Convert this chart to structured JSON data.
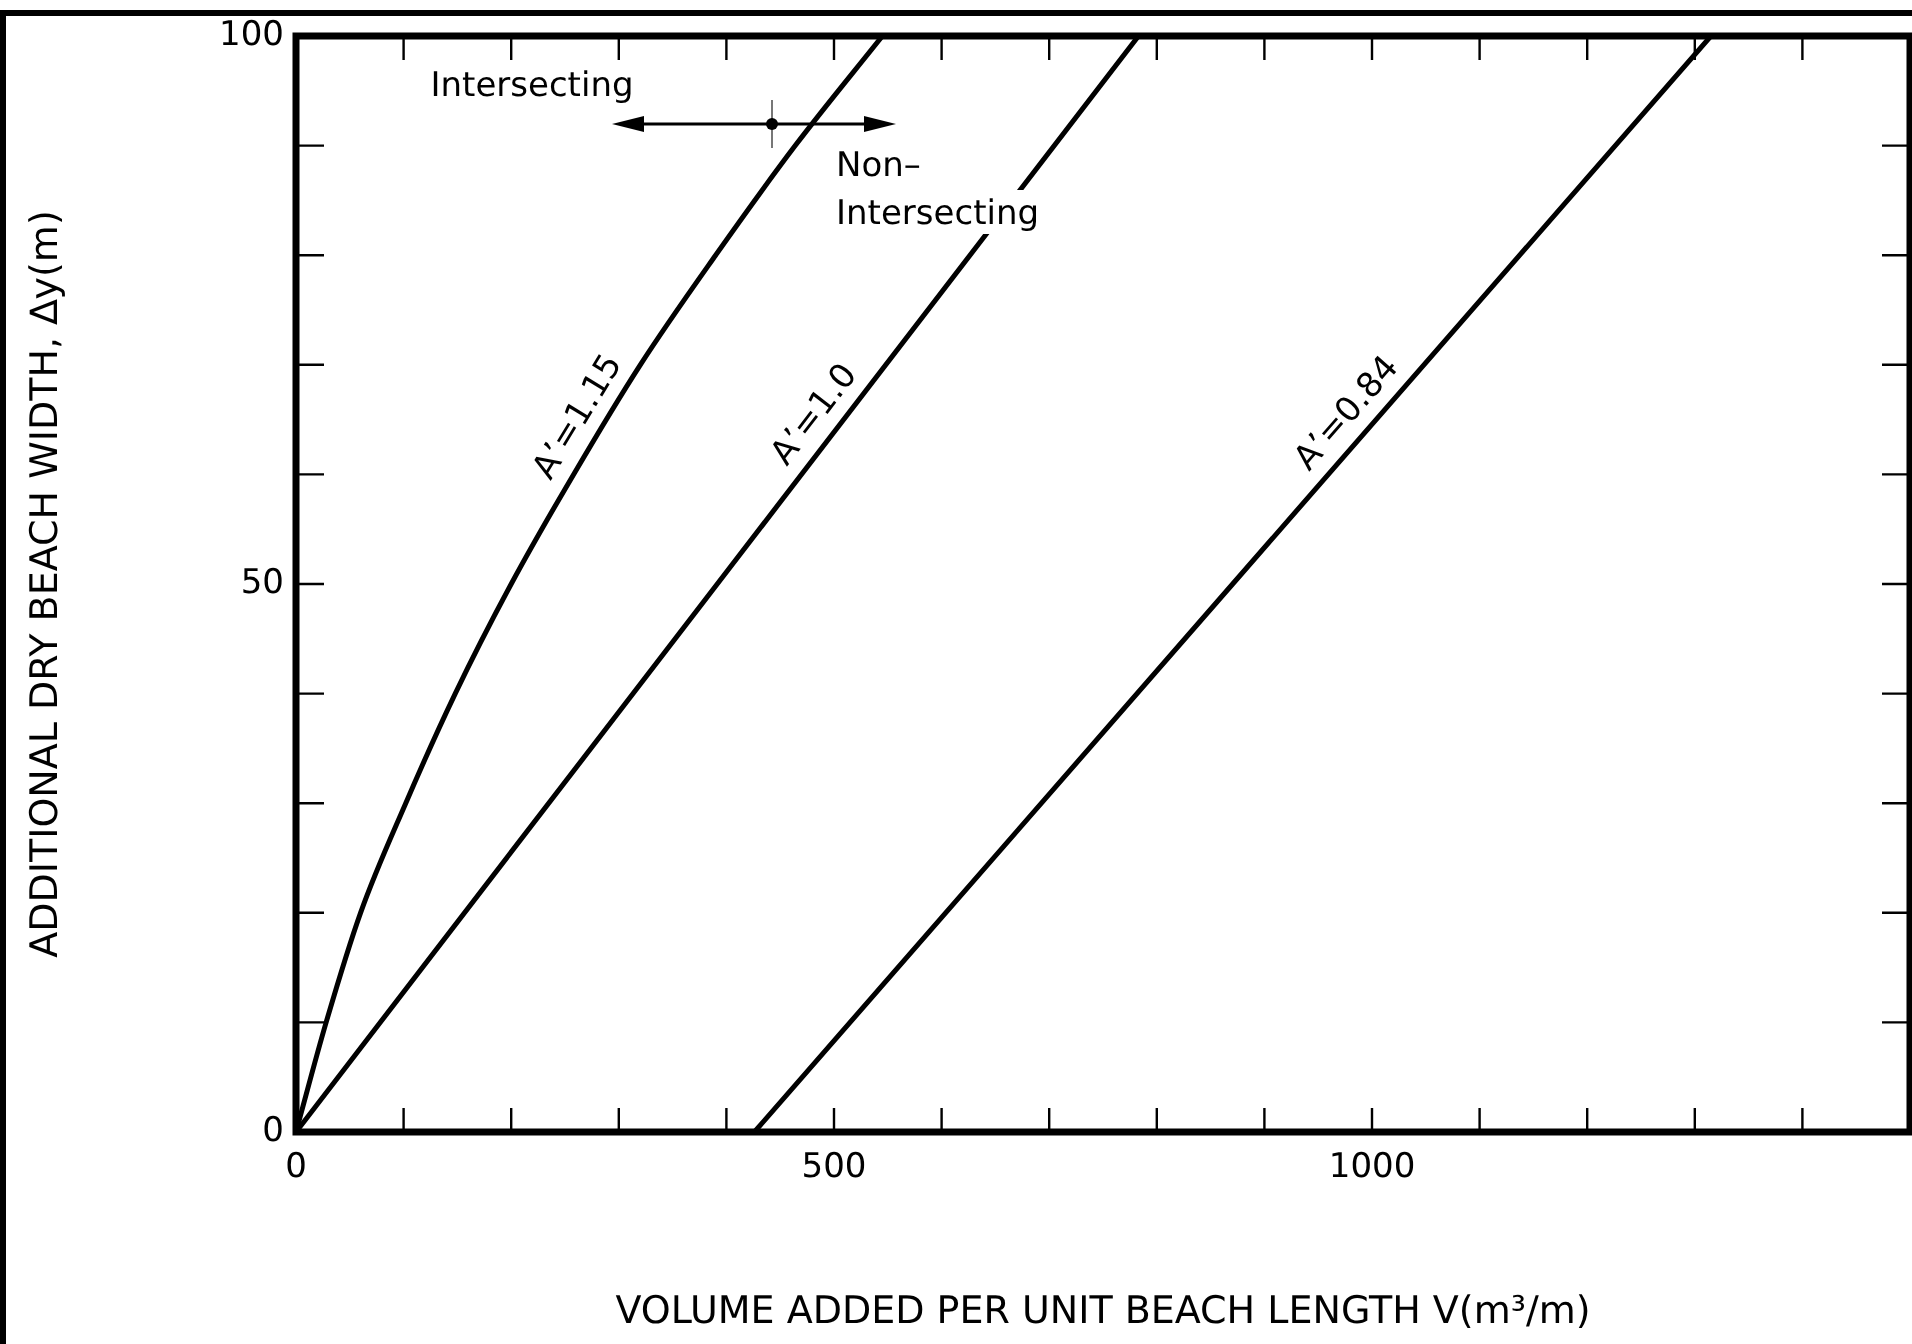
{
  "chart_data": {
    "type": "line",
    "xlabel": "VOLUME ADDED PER UNIT BEACH LENGTH V(m³/m)",
    "ylabel": "ADDITIONAL DRY BEACH WIDTH, ∆y(m)",
    "series": [
      {
        "name": "A’=1.15",
        "color": "#000000",
        "x": [
          0,
          28,
          60,
          102,
          148,
          200,
          258,
          320,
          390,
          464,
          545
        ],
        "values": [
          0,
          10,
          20,
          30,
          40,
          50,
          60,
          70,
          80,
          90,
          100
        ]
      },
      {
        "name": "A’=1.0",
        "color": "#000000",
        "x": [
          0,
          783
        ],
        "values": [
          0,
          100
        ]
      },
      {
        "name": "A’=0.84",
        "color": "#000000",
        "x": [
          426,
          1315
        ],
        "values": [
          0,
          100
        ]
      }
    ],
    "xlim": [
      0,
      1500
    ],
    "xticks": [
      0,
      {
        "value": 100,
        "label": null
      },
      {
        "value": 200,
        "label": null
      },
      {
        "value": 300,
        "label": null
      },
      {
        "value": 400,
        "label": null
      },
      500,
      {
        "value": 600,
        "label": null
      },
      {
        "value": 700,
        "label": null
      },
      {
        "value": 800,
        "label": null
      },
      {
        "value": 900,
        "label": null
      },
      1000,
      {
        "value": 1100,
        "label": null
      },
      {
        "value": 1200,
        "label": null
      },
      {
        "value": 1300,
        "label": null
      },
      {
        "value": 1400,
        "label": null
      }
    ],
    "ylim": [
      0,
      100
    ],
    "yticks": [
      0,
      {
        "value": 10,
        "label": null
      },
      {
        "value": 20,
        "label": null
      },
      {
        "value": 30,
        "label": null
      },
      {
        "value": 40,
        "label": null
      },
      50,
      {
        "value": 60,
        "label": null
      },
      {
        "value": 70,
        "label": null
      },
      {
        "value": 80,
        "label": null
      },
      {
        "value": 90,
        "label": null
      },
      100
    ],
    "annotations": [
      "Intersecting",
      "Non–\nIntersecting"
    ],
    "grid": false,
    "legend": false,
    "marker": "none",
    "line_style": "solid"
  }
}
